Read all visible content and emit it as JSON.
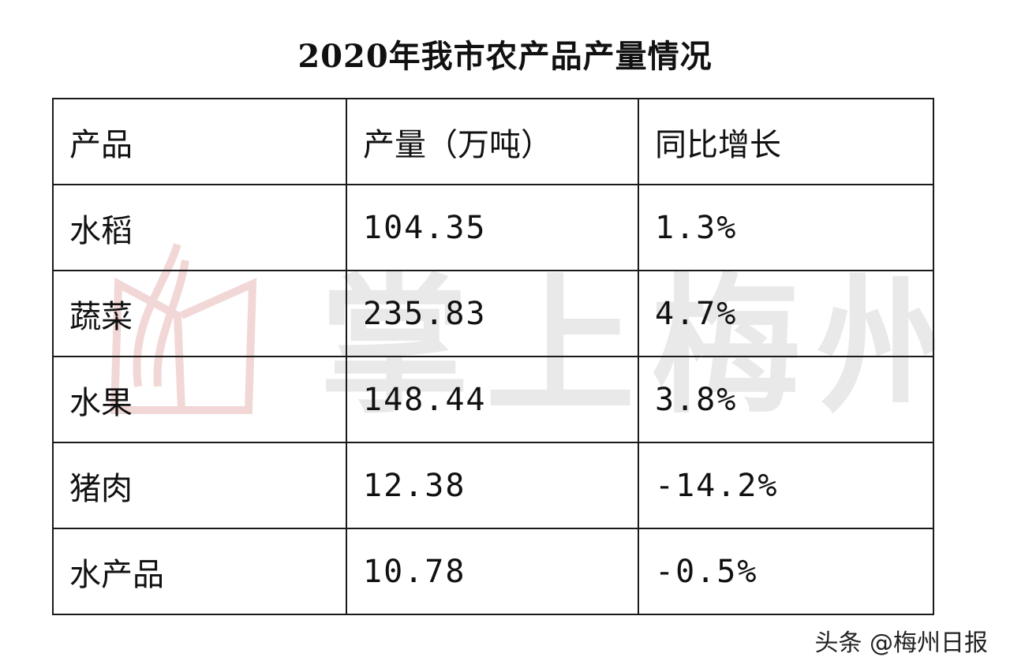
{
  "title": "2020年我市农产品产量情况",
  "table": {
    "headers": [
      "产品",
      "产量（万吨）",
      "同比增长"
    ],
    "rows": [
      {
        "product": "水稻",
        "output": "104.35",
        "growth": "1.3%"
      },
      {
        "product": "蔬菜",
        "output": "235.83",
        "growth": "4.7%"
      },
      {
        "product": "水果",
        "output": "148.44",
        "growth": "3.8%"
      },
      {
        "product": "猪肉",
        "output": "12.38",
        "growth": "-14.2%"
      },
      {
        "product": "水产品",
        "output": "10.78",
        "growth": "-0.5%"
      }
    ]
  },
  "watermark": {
    "text": "掌上梅州",
    "logo_color": "#e8b8b8",
    "text_color": "#e2e2e2"
  },
  "credit": "头条 @梅州日报"
}
